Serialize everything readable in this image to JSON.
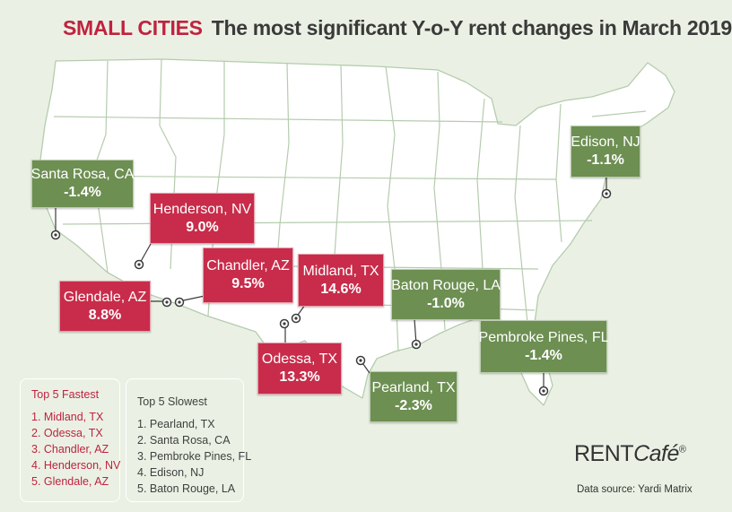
{
  "title": {
    "tag": "SMALL CITIES",
    "text": "The most significant Y-o-Y rent changes in March 2019"
  },
  "colors": {
    "fast": "#c82c4a",
    "slow": "#6d8f52",
    "background": "#eaf1e4",
    "states": "#ffffff",
    "border": "#b5ccae"
  },
  "cities": [
    {
      "id": "santa-rosa",
      "label": "Santa Rosa, CA",
      "change": "-1.4%",
      "group": "slow"
    },
    {
      "id": "henderson",
      "label": "Henderson, NV",
      "change": "9.0%",
      "group": "fast"
    },
    {
      "id": "glendale",
      "label": "Glendale, AZ",
      "change": "8.8%",
      "group": "fast"
    },
    {
      "id": "chandler",
      "label": "Chandler, AZ",
      "change": "9.5%",
      "group": "fast"
    },
    {
      "id": "midland",
      "label": "Midland, TX",
      "change": "14.6%",
      "group": "fast"
    },
    {
      "id": "odessa",
      "label": "Odessa, TX",
      "change": "13.3%",
      "group": "fast"
    },
    {
      "id": "pearland",
      "label": "Pearland, TX",
      "change": "-2.3%",
      "group": "slow"
    },
    {
      "id": "baton-rouge",
      "label": "Baton Rouge, LA",
      "change": "-1.0%",
      "group": "slow"
    },
    {
      "id": "pembroke-pines",
      "label": "Pembroke Pines, FL",
      "change": "-1.4%",
      "group": "slow"
    },
    {
      "id": "edison",
      "label": "Edison, NJ",
      "change": "-1.1%",
      "group": "slow"
    }
  ],
  "legend": {
    "fastest": {
      "heading": "Top 5 Fastest",
      "items": [
        "1. Midland, TX",
        "2. Odessa, TX",
        "3. Chandler, AZ",
        "4. Henderson, NV",
        "5. Glendale, AZ"
      ]
    },
    "slowest": {
      "heading": "Top 5 Slowest",
      "items": [
        "1. Pearland, TX",
        "2. Santa Rosa, CA",
        "3. Pembroke Pines, FL",
        "4. Edison, NJ",
        "5. Baton Rouge, LA"
      ]
    }
  },
  "brand": {
    "rent": "RENT",
    "cafe": "Café",
    "mark": "®"
  },
  "source": "Data source:  Yardi Matrix"
}
